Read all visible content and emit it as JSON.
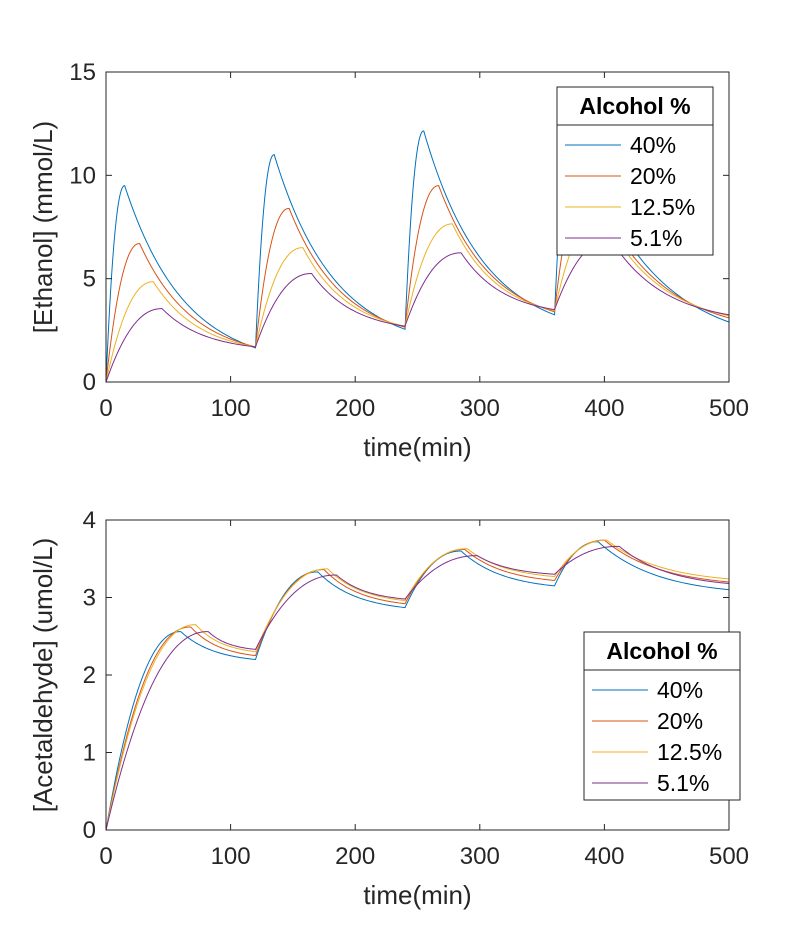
{
  "chart_data": [
    {
      "type": "line",
      "title": "",
      "xlabel": "time(min)",
      "ylabel": "[Ethanol] (mmol/L)",
      "xlim": [
        0,
        500
      ],
      "ylim": [
        0,
        15
      ],
      "xticks": [
        "0",
        "100",
        "200",
        "300",
        "400",
        "500"
      ],
      "yticks": [
        "0",
        "5",
        "10",
        "15"
      ],
      "grid": false,
      "legend": {
        "title": "Alcohol %",
        "placement": "top-right"
      },
      "dose_interval_min": 120,
      "series": [
        {
          "name": "40%",
          "color": "#0072BD",
          "peak_at": [
            15,
            135,
            255,
            375
          ],
          "points": [
            [
              0,
              0
            ],
            [
              15,
              9.5
            ],
            [
              120,
              1.65
            ],
            [
              135,
              11.0
            ],
            [
              240,
              2.55
            ],
            [
              255,
              12.15
            ],
            [
              360,
              3.25
            ],
            [
              375,
              12.8
            ],
            [
              500,
              2.9
            ]
          ]
        },
        {
          "name": "20%",
          "color": "#D95319",
          "peak_at": [
            27,
            147,
            267,
            387
          ],
          "points": [
            [
              0,
              0
            ],
            [
              27,
              6.7
            ],
            [
              120,
              1.7
            ],
            [
              147,
              8.4
            ],
            [
              240,
              2.65
            ],
            [
              267,
              9.5
            ],
            [
              360,
              3.4
            ],
            [
              387,
              10.0
            ],
            [
              500,
              3.1
            ]
          ]
        },
        {
          "name": "12.5%",
          "color": "#EDB120",
          "peak_at": [
            38,
            158,
            278,
            398
          ],
          "points": [
            [
              0,
              0
            ],
            [
              38,
              4.85
            ],
            [
              120,
              1.7
            ],
            [
              158,
              6.5
            ],
            [
              240,
              2.7
            ],
            [
              278,
              7.65
            ],
            [
              360,
              3.45
            ],
            [
              398,
              8.2
            ],
            [
              500,
              3.2
            ]
          ]
        },
        {
          "name": "5.1%",
          "color": "#7E2F8E",
          "peak_at": [
            45,
            165,
            285,
            405
          ],
          "points": [
            [
              0,
              0
            ],
            [
              45,
              3.55
            ],
            [
              120,
              1.7
            ],
            [
              165,
              5.25
            ],
            [
              240,
              2.7
            ],
            [
              285,
              6.25
            ],
            [
              360,
              3.5
            ],
            [
              405,
              6.9
            ],
            [
              500,
              3.25
            ]
          ]
        }
      ]
    },
    {
      "type": "line",
      "title": "",
      "xlabel": "time(min)",
      "ylabel": "[Acetaldehyde] (umol/L)",
      "xlim": [
        0,
        500
      ],
      "ylim": [
        0,
        4
      ],
      "xticks": [
        "0",
        "100",
        "200",
        "300",
        "400",
        "500"
      ],
      "yticks": [
        "0",
        "1",
        "2",
        "3",
        "4"
      ],
      "grid": false,
      "legend": {
        "title": "Alcohol %",
        "placement": "right"
      },
      "dose_interval_min": 120,
      "series": [
        {
          "name": "40%",
          "color": "#0072BD",
          "peak_at": [
            60,
            170,
            285,
            395
          ],
          "points": [
            [
              0,
              0
            ],
            [
              60,
              2.56
            ],
            [
              120,
              2.2
            ],
            [
              170,
              3.33
            ],
            [
              240,
              2.87
            ],
            [
              285,
              3.6
            ],
            [
              360,
              3.15
            ],
            [
              395,
              3.72
            ],
            [
              500,
              3.1
            ]
          ]
        },
        {
          "name": "20%",
          "color": "#D95319",
          "peak_at": [
            68,
            175,
            288,
            400
          ],
          "points": [
            [
              0,
              0
            ],
            [
              68,
              2.62
            ],
            [
              120,
              2.25
            ],
            [
              175,
              3.36
            ],
            [
              240,
              2.92
            ],
            [
              288,
              3.62
            ],
            [
              360,
              3.22
            ],
            [
              400,
              3.74
            ],
            [
              500,
              3.2
            ]
          ]
        },
        {
          "name": "12.5%",
          "color": "#EDB120",
          "peak_at": [
            72,
            178,
            290,
            402
          ],
          "points": [
            [
              0,
              0
            ],
            [
              72,
              2.65
            ],
            [
              120,
              2.3
            ],
            [
              178,
              3.37
            ],
            [
              240,
              2.96
            ],
            [
              290,
              3.63
            ],
            [
              360,
              3.27
            ],
            [
              402,
              3.74
            ],
            [
              500,
              3.24
            ]
          ]
        },
        {
          "name": "5.1%",
          "color": "#7E2F8E",
          "peak_at": [
            82,
            185,
            298,
            412
          ],
          "points": [
            [
              0,
              0
            ],
            [
              82,
              2.56
            ],
            [
              120,
              2.33
            ],
            [
              185,
              3.29
            ],
            [
              240,
              2.98
            ],
            [
              298,
              3.54
            ],
            [
              360,
              3.3
            ],
            [
              412,
              3.66
            ],
            [
              500,
              3.18
            ]
          ]
        }
      ]
    }
  ]
}
